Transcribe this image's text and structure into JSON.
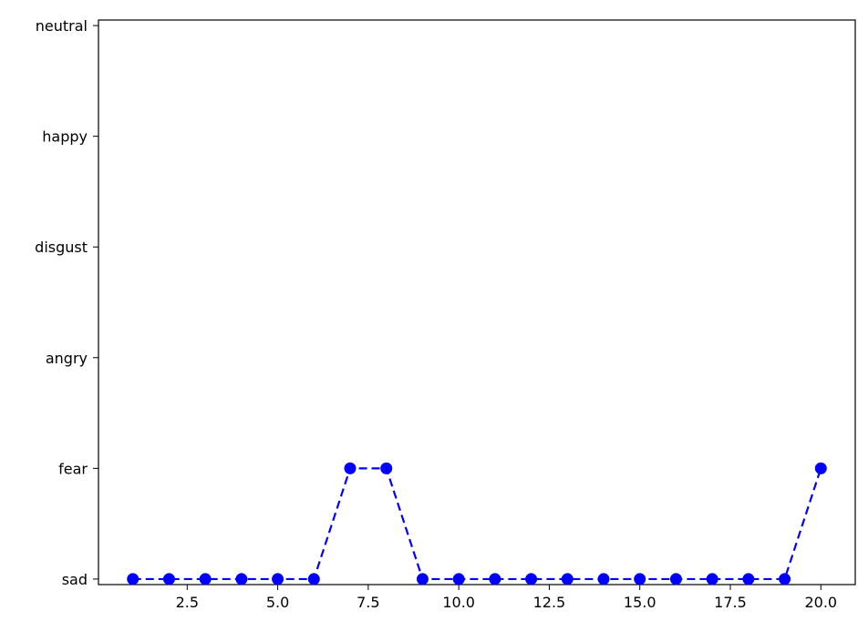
{
  "chart_data": {
    "type": "line",
    "title": "",
    "xlabel": "",
    "ylabel": "",
    "xlim": [
      0.05,
      20.95
    ],
    "ylim": [
      -0.05,
      5.05
    ],
    "x_ticks": [
      2.5,
      5.0,
      7.5,
      10.0,
      12.5,
      15.0,
      17.5,
      20.0
    ],
    "x_tick_labels": [
      "2.5",
      "5.0",
      "7.5",
      "10.0",
      "12.5",
      "15.0",
      "17.5",
      "20.0"
    ],
    "y_categories": [
      "sad",
      "fear",
      "angry",
      "disgust",
      "happy",
      "neutral"
    ],
    "grid": false,
    "series": [
      {
        "color": "#0000ff",
        "line_style": "dashed",
        "marker": "circle",
        "x": [
          1,
          2,
          3,
          4,
          5,
          6,
          7,
          8,
          9,
          10,
          11,
          12,
          13,
          14,
          15,
          16,
          17,
          18,
          19,
          20
        ],
        "y": [
          "sad",
          "sad",
          "sad",
          "sad",
          "sad",
          "sad",
          "fear",
          "fear",
          "sad",
          "sad",
          "sad",
          "sad",
          "sad",
          "sad",
          "sad",
          "sad",
          "sad",
          "sad",
          "sad",
          "fear"
        ]
      }
    ]
  }
}
